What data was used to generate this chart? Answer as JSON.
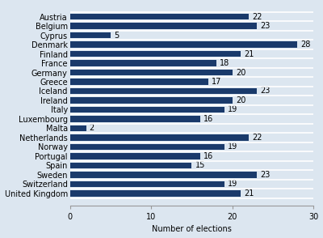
{
  "countries": [
    "Austria",
    "Belgium",
    "Cyprus",
    "Denmark",
    "Finland",
    "France",
    "Germany",
    "Greece",
    "Iceland",
    "Ireland",
    "Italy",
    "Luxembourg",
    "Malta",
    "Netherlands",
    "Norway",
    "Portugal",
    "Spain",
    "Sweden",
    "Switzerland",
    "United Kingdom"
  ],
  "values": [
    22,
    23,
    5,
    28,
    21,
    18,
    20,
    17,
    23,
    20,
    19,
    16,
    2,
    22,
    19,
    16,
    15,
    23,
    19,
    21
  ],
  "bar_color": "#1a3a6b",
  "xlabel": "Number of elections",
  "xlim": [
    0,
    30
  ],
  "xticks": [
    0,
    10,
    20,
    30
  ],
  "plot_bg_color": "#dce6f0",
  "fig_bg_color": "#dce6f0",
  "label_fontsize": 7.0,
  "value_fontsize": 7.0,
  "bar_height": 0.65
}
